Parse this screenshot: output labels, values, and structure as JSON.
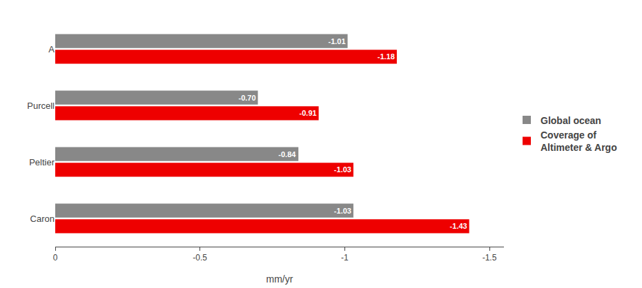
{
  "chart_data": {
    "type": "bar",
    "orientation": "horizontal",
    "categories": [
      "Caron",
      "Peltier",
      "Purcell",
      "A"
    ],
    "series": [
      {
        "name": "Global ocean",
        "color": "#888888",
        "values": [
          -1.03,
          -0.84,
          -0.7,
          -1.01
        ],
        "value_labels": [
          "-1.03",
          "-0.84",
          "-0.70",
          "-1.01"
        ]
      },
      {
        "name": "Coverage of\nAltimeter & Argo",
        "color": "#ee0000",
        "values": [
          -1.43,
          -1.03,
          -0.91,
          -1.18
        ],
        "value_labels": [
          "-1.43",
          "-1.03",
          "-0.91",
          "-1.18"
        ]
      }
    ],
    "xlabel": "mm/yr",
    "xlim": [
      0,
      -1.55
    ],
    "xticks": [
      0,
      -0.5,
      -1,
      -1.5
    ],
    "grid": false,
    "data_labels": true,
    "legend": "right"
  }
}
